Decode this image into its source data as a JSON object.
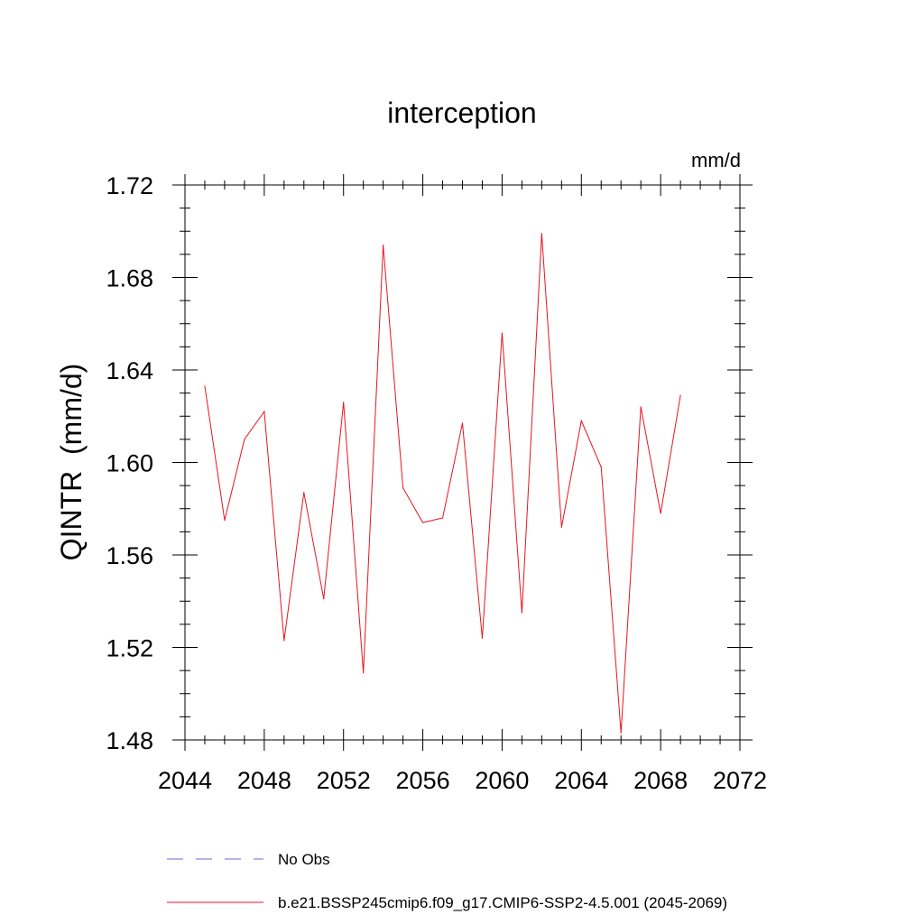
{
  "chart_data": {
    "type": "line",
    "title": "interception",
    "units_label": "mm/d",
    "xlabel": "",
    "ylabel": "QINTR  (mm/d)",
    "xlim": [
      2044,
      2072
    ],
    "ylim": [
      1.48,
      1.72
    ],
    "x_ticks": [
      2044,
      2048,
      2052,
      2056,
      2060,
      2064,
      2068,
      2072
    ],
    "x_tick_labels": [
      "2044",
      "2048",
      "2052",
      "2056",
      "2060",
      "2064",
      "2068",
      "2072"
    ],
    "y_ticks": [
      1.48,
      1.52,
      1.56,
      1.6,
      1.64,
      1.68,
      1.72
    ],
    "y_tick_labels": [
      "1.48",
      "1.52",
      "1.56",
      "1.60",
      "1.64",
      "1.68",
      "1.72"
    ],
    "grid": false,
    "legend_position": "bottom",
    "series": [
      {
        "name": "b.e21.BSSP245cmip6.f09_g17.CMIP6-SSP2-4.5.001 (2045-2069)",
        "color": "#e8141e",
        "style": "solid",
        "x": [
          2045,
          2046,
          2047,
          2048,
          2049,
          2050,
          2051,
          2052,
          2053,
          2054,
          2055,
          2056,
          2057,
          2058,
          2059,
          2060,
          2061,
          2062,
          2063,
          2064,
          2065,
          2066,
          2067,
          2068,
          2069
        ],
        "values": [
          1.633,
          1.575,
          1.61,
          1.622,
          1.523,
          1.587,
          1.541,
          1.626,
          1.509,
          1.694,
          1.589,
          1.574,
          1.576,
          1.617,
          1.524,
          1.656,
          1.535,
          1.699,
          1.572,
          1.618,
          1.598,
          1.483,
          1.624,
          1.578,
          1.629
        ]
      }
    ],
    "legend": [
      {
        "label": "No Obs",
        "color": "#6a6acd",
        "style": "dashed"
      },
      {
        "label": "b.e21.BSSP245cmip6.f09_g17.CMIP6-SSP2-4.5.001 (2045-2069)",
        "color": "#e8141e",
        "style": "solid"
      }
    ]
  }
}
